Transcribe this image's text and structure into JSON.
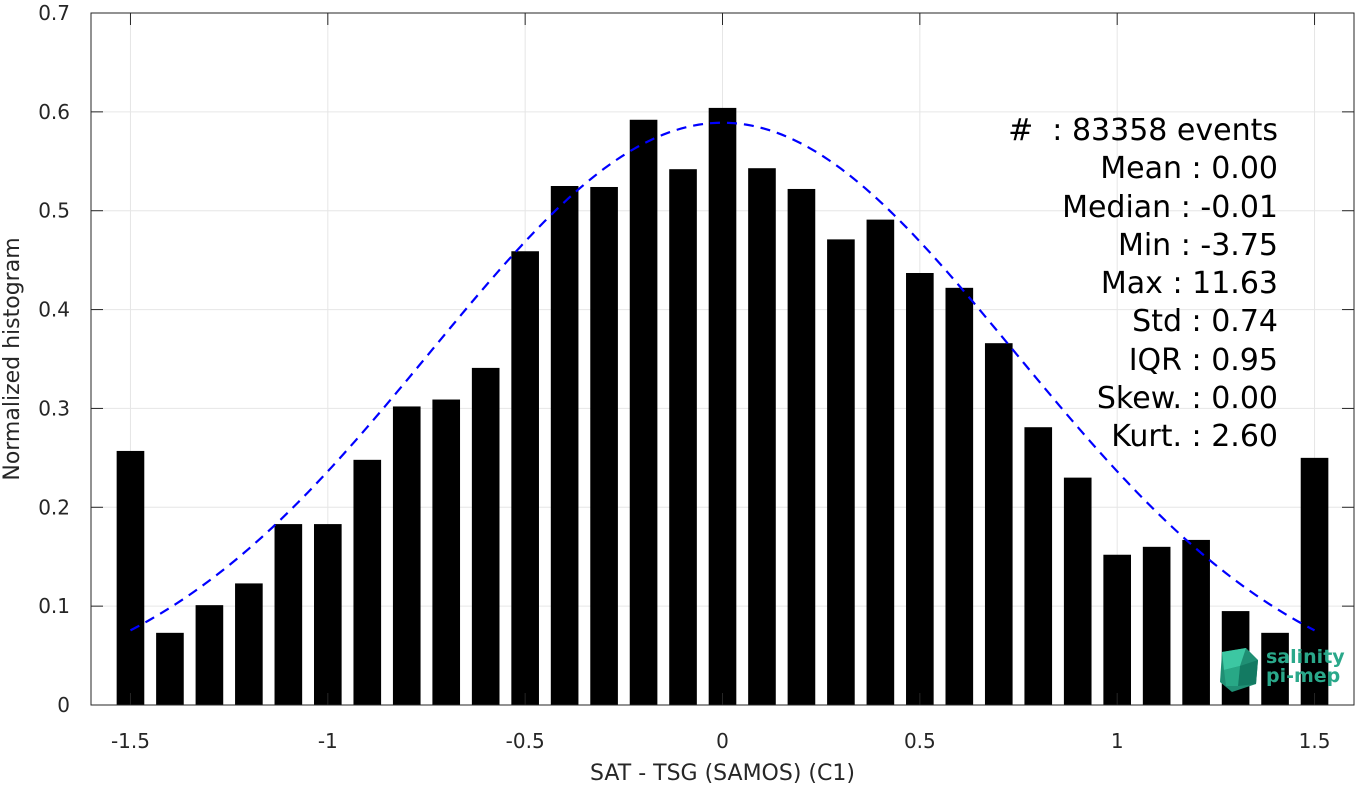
{
  "chart_data": {
    "type": "bar",
    "xlabel": "SAT - TSG (SAMOS) (C1)",
    "ylabel": "Normalized histogram",
    "xlim": [
      -1.6,
      1.6
    ],
    "ylim": [
      0,
      0.7
    ],
    "x_ticks": [
      "-1.5",
      "-1",
      "-0.5",
      "0",
      "0.5",
      "1",
      "1.5"
    ],
    "y_ticks": [
      "0",
      "0.1",
      "0.2",
      "0.3",
      "0.4",
      "0.5",
      "0.6",
      "0.7"
    ],
    "grid": true,
    "bar_width": 0.07,
    "x": [
      -1.5,
      -1.4,
      -1.3,
      -1.2,
      -1.1,
      -1.0,
      -0.9,
      -0.8,
      -0.7,
      -0.6,
      -0.5,
      -0.4,
      -0.3,
      -0.2,
      -0.1,
      0.0,
      0.1,
      0.2,
      0.3,
      0.4,
      0.5,
      0.6,
      0.7,
      0.8,
      0.9,
      1.0,
      1.1,
      1.2,
      1.3,
      1.4,
      1.5
    ],
    "values": [
      0.257,
      0.073,
      0.101,
      0.123,
      0.183,
      0.183,
      0.248,
      0.302,
      0.309,
      0.341,
      0.459,
      0.525,
      0.524,
      0.592,
      0.542,
      0.604,
      0.543,
      0.522,
      0.471,
      0.491,
      0.437,
      0.422,
      0.366,
      0.281,
      0.23,
      0.152,
      0.16,
      0.167,
      0.095,
      0.073,
      0.25
    ],
    "fit": {
      "type": "gaussian",
      "mean": 0.0,
      "std": 0.74,
      "peak": 0.589,
      "color": "#0000ff",
      "style": "dashed"
    },
    "bar_color": "#000000"
  },
  "stats": [
    "#  : 83358 events",
    "Mean : 0.00",
    "Median : -0.01",
    "Min : -3.75",
    "Max : 11.63",
    "Std : 0.74",
    "IQR : 0.95",
    "Skew. : 0.00",
    "Kurt. : 2.60"
  ],
  "logo": {
    "line1": "salinity",
    "line2": "pi-mep",
    "color": "#2aa88a"
  }
}
